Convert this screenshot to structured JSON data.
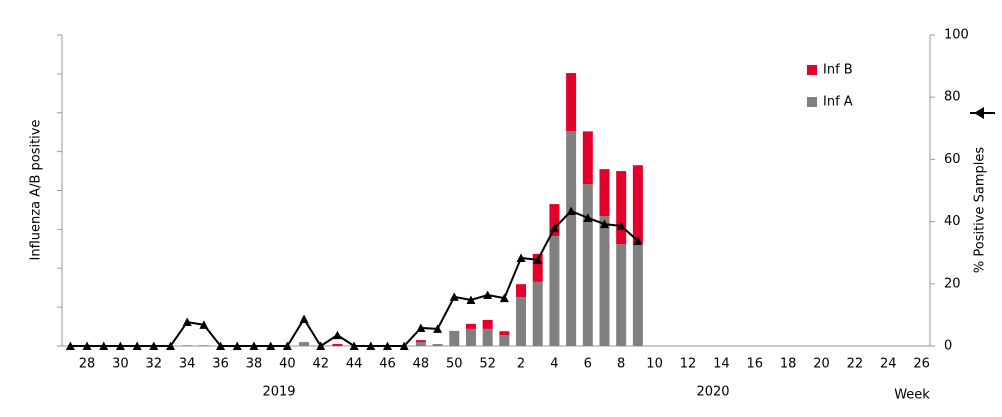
{
  "chart_data": {
    "type": "bar",
    "categories": [
      null,
      "28",
      null,
      "30",
      null,
      "32",
      null,
      "34",
      null,
      "36",
      null,
      "38",
      null,
      "40",
      null,
      "42",
      null,
      "44",
      null,
      "46",
      null,
      "48",
      null,
      "50",
      null,
      "52",
      null,
      "2",
      null,
      "4",
      null,
      "6",
      null,
      "8",
      null,
      "10",
      null,
      "12",
      null,
      "14",
      null,
      "16",
      null,
      "18",
      null,
      "20",
      null,
      "22",
      null,
      "24",
      null,
      "26"
    ],
    "year_labels": [
      "2019",
      "2020"
    ],
    "x_label": "Week",
    "y_label": "Influenza A/B positive",
    "y2_label": "% Positive Samples",
    "ylim": [
      0,
      80
    ],
    "y2lim": [
      0,
      100
    ],
    "y2ticks": [
      0,
      20,
      40,
      60,
      80,
      100
    ],
    "series": [
      {
        "name": "Inf A",
        "color": "#808080",
        "values": [
          0,
          0,
          0,
          0,
          0,
          0,
          0,
          0.2,
          0.2,
          0,
          0,
          0,
          0,
          0,
          1,
          0,
          0,
          0,
          0,
          0,
          0,
          1,
          0.5,
          3.9,
          4.4,
          4.4,
          2.8,
          12.6,
          16.5,
          28.3,
          55.3,
          41.6,
          33.4,
          26.2,
          26.2,
          null,
          null,
          null,
          null,
          null,
          null,
          null,
          null,
          null,
          null,
          null,
          null,
          null,
          null,
          null,
          null,
          null
        ]
      },
      {
        "name": "Inf B",
        "color": "#e4002b",
        "values": [
          0,
          0,
          0,
          0,
          0,
          0,
          0,
          0,
          0,
          0,
          0,
          0,
          0,
          0,
          0,
          0,
          0.5,
          0,
          0,
          0,
          0,
          0.5,
          0,
          0,
          1.3,
          2.3,
          1,
          3.3,
          7.2,
          8.2,
          14.9,
          13.6,
          12.1,
          18.8,
          20.3,
          null,
          null,
          null,
          null,
          null,
          null,
          null,
          null,
          null,
          null,
          null,
          null,
          null,
          null,
          null,
          null,
          null
        ]
      },
      {
        "type": "line",
        "axis": "y2",
        "color": "#000000",
        "values": [
          0,
          0,
          0,
          0,
          0,
          0,
          0,
          7.7,
          6.8,
          0,
          0,
          0,
          0,
          0,
          8.7,
          0,
          3.5,
          0,
          0,
          0,
          0,
          5.8,
          5.5,
          15.8,
          14.8,
          16.4,
          15.4,
          28.3,
          27.7,
          37.9,
          43.4,
          41.2,
          39.2,
          38.6,
          33.8,
          null,
          null,
          null,
          null,
          null,
          null,
          null,
          null,
          null,
          null,
          null,
          null,
          null,
          null,
          null,
          null,
          null
        ]
      }
    ]
  }
}
